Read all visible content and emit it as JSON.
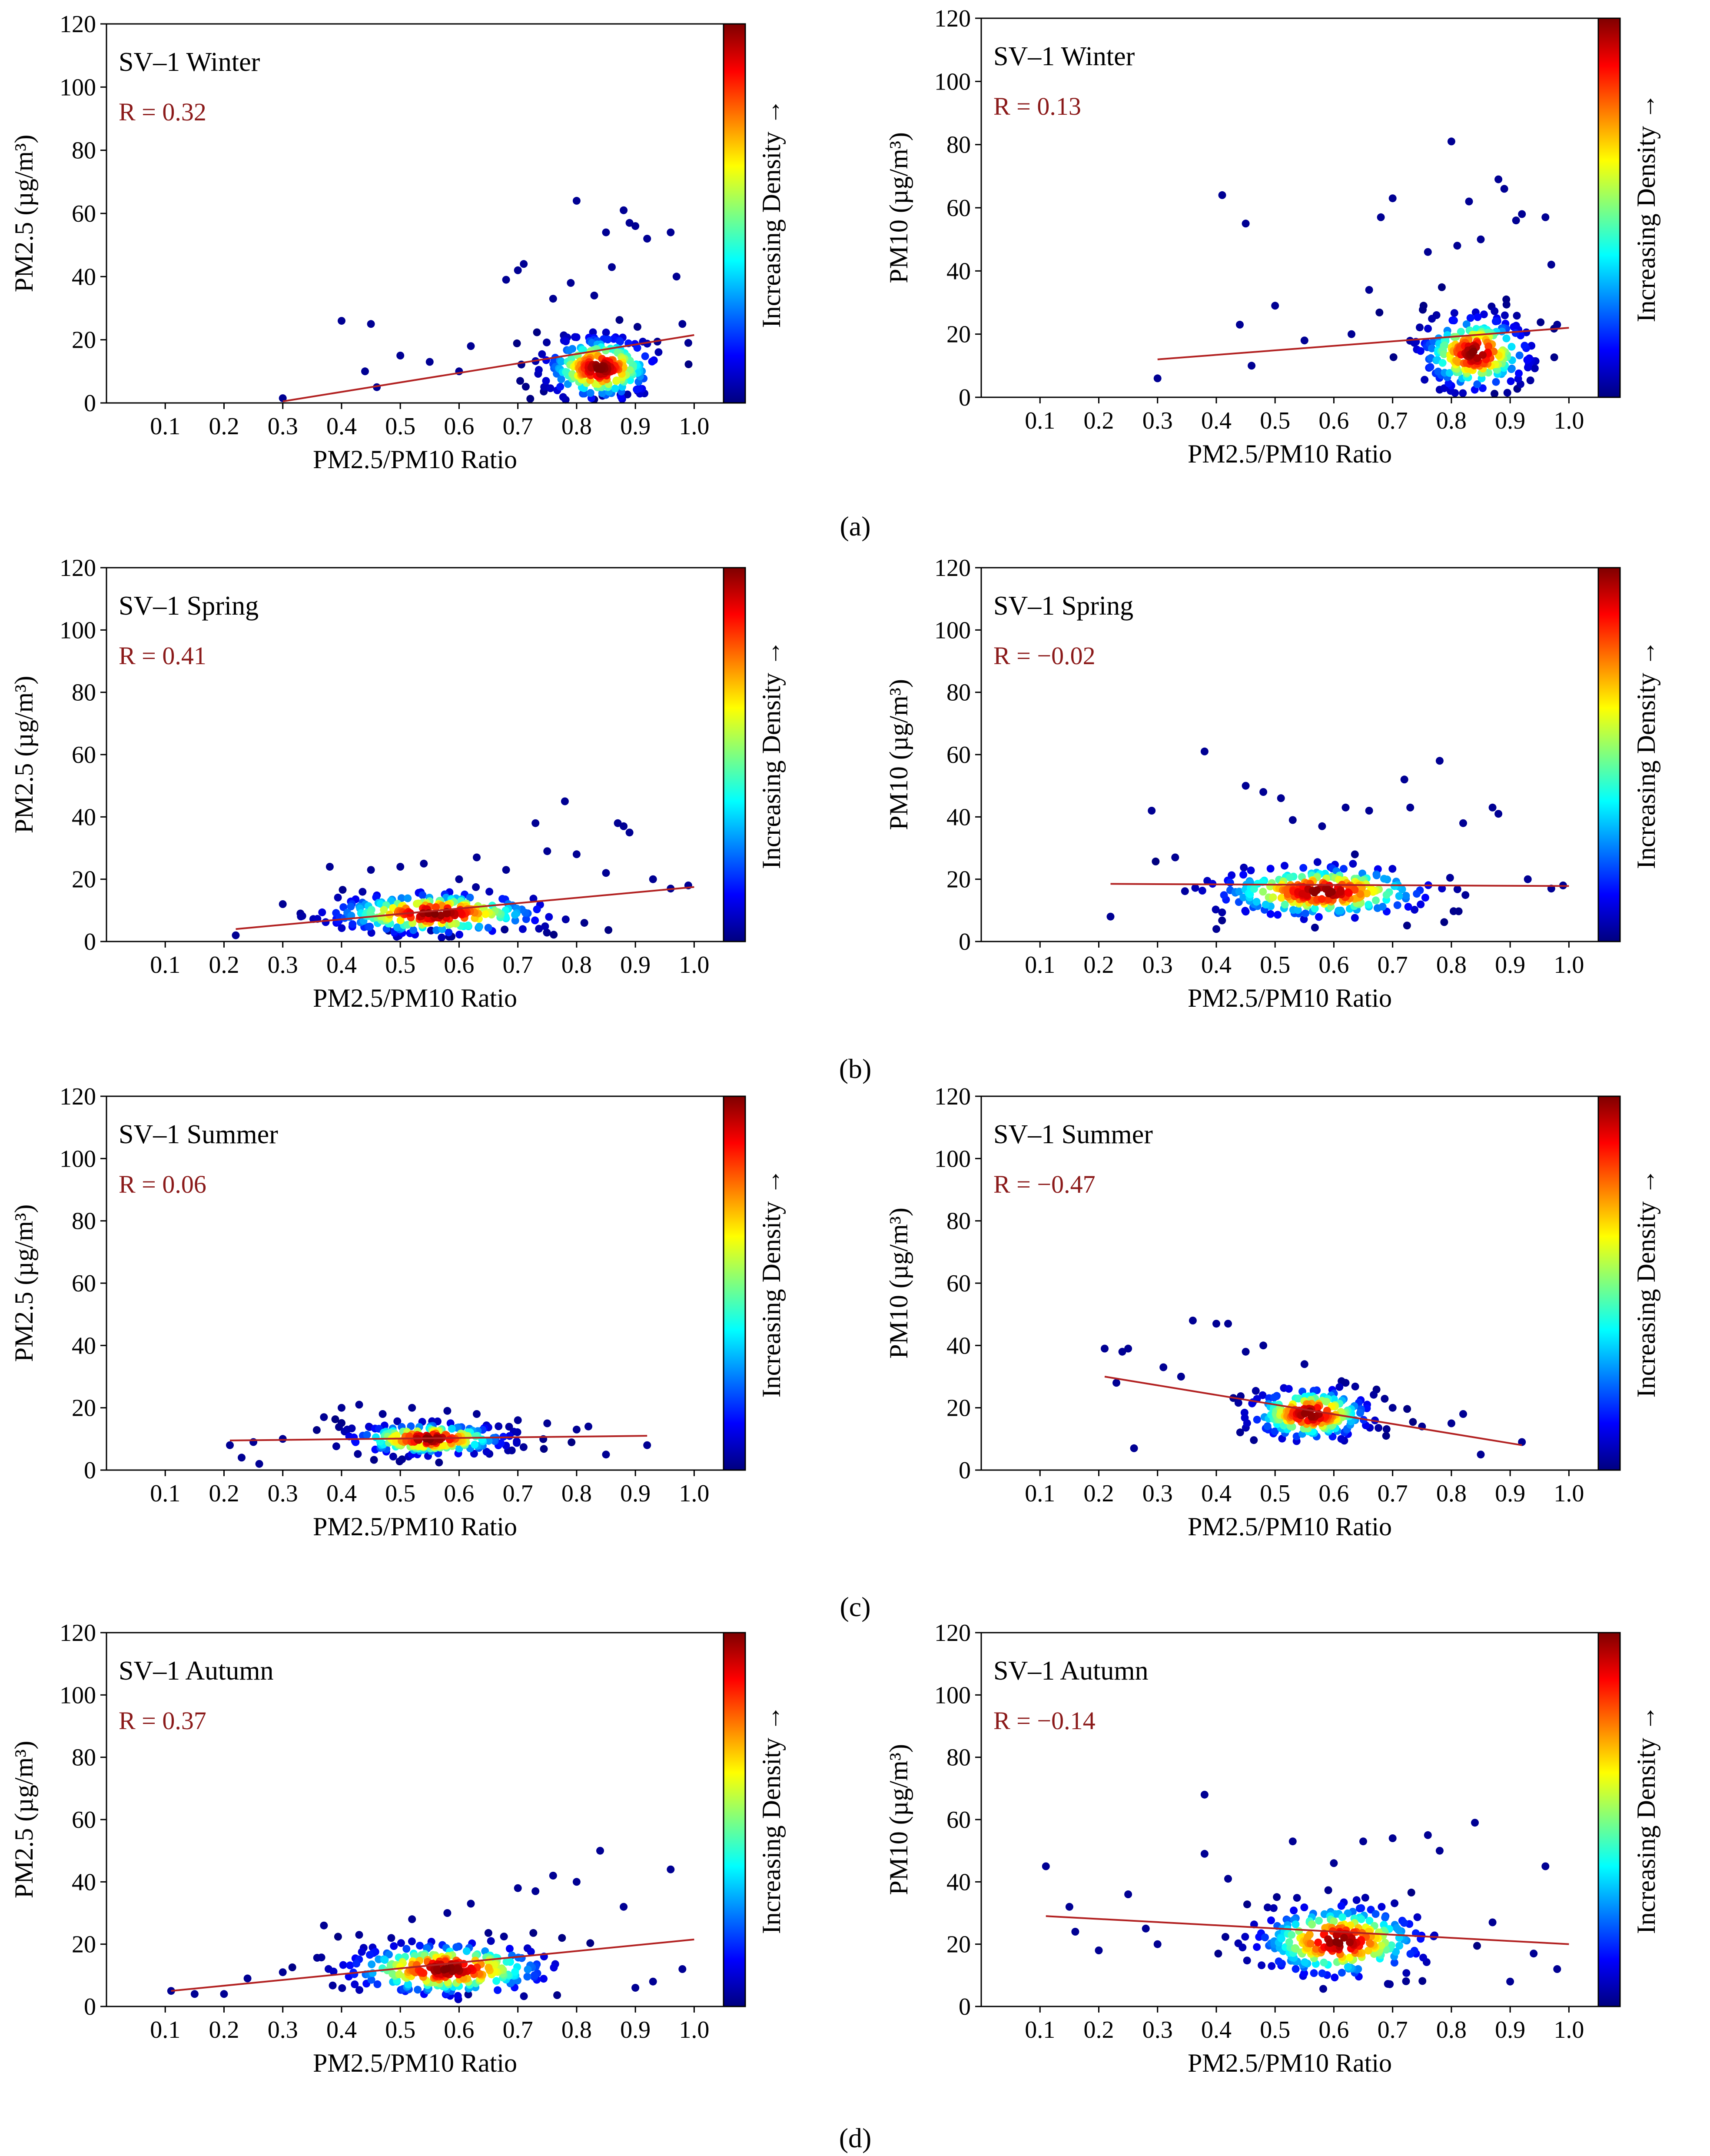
{
  "figure": {
    "panel_labels": [
      "(a)",
      "(b)",
      "(c)",
      "(d)"
    ],
    "colorbar_label": "Increasing Density →",
    "colorbar_colors": [
      "#00007f",
      "#0000ff",
      "#007fff",
      "#00ffff",
      "#7fff7f",
      "#ffff00",
      "#ff7f00",
      "#ff0000",
      "#7f0000"
    ],
    "fit_color": "#b22222",
    "r_color": "#8b1a1a"
  },
  "chart_data": [
    {
      "type": "scatter",
      "title": "SV–1 Winter",
      "r_text": "R = 0.32",
      "xlabel": "PM2.5/PM10 Ratio",
      "ylabel": "PM2.5 (µg/m³)",
      "xlim": [
        0,
        1.05
      ],
      "ylim": [
        0,
        120
      ],
      "xticks": [
        "0.1",
        "0.2",
        "0.3",
        "0.4",
        "0.5",
        "0.6",
        "0.7",
        "0.8",
        "0.9",
        "1.0"
      ],
      "yticks": [
        "0",
        "20",
        "40",
        "60",
        "80",
        "100",
        "120"
      ],
      "fit_line": {
        "x": [
          0.3,
          1.0
        ],
        "y": [
          0.5,
          21.5
        ]
      },
      "cluster": {
        "x_center": 0.84,
        "y_center": 11,
        "x_spread": 0.09,
        "y_spread": 6,
        "n": 260
      },
      "outliers": [
        [
          0.3,
          1.5
        ],
        [
          0.4,
          26
        ],
        [
          0.44,
          10
        ],
        [
          0.45,
          25
        ],
        [
          0.46,
          5
        ],
        [
          0.5,
          15
        ],
        [
          0.55,
          13
        ],
        [
          0.6,
          10
        ],
        [
          0.62,
          18
        ],
        [
          0.68,
          39
        ],
        [
          0.7,
          42
        ],
        [
          0.71,
          44
        ],
        [
          0.76,
          33
        ],
        [
          0.79,
          38
        ],
        [
          0.8,
          64
        ],
        [
          0.83,
          34
        ],
        [
          0.85,
          54
        ],
        [
          0.86,
          43
        ],
        [
          0.88,
          61
        ],
        [
          0.89,
          57
        ],
        [
          0.9,
          56
        ],
        [
          0.92,
          52
        ],
        [
          0.96,
          54
        ],
        [
          0.97,
          40
        ],
        [
          0.98,
          25
        ],
        [
          0.99,
          19
        ]
      ]
    },
    {
      "type": "scatter",
      "title": "SV–1 Winter",
      "r_text": "R = 0.13",
      "xlabel": "PM2.5/PM10 Ratio",
      "ylabel": "PM10 (µg/m³)",
      "xlim": [
        0,
        1.05
      ],
      "ylim": [
        0,
        120
      ],
      "xticks": [
        "0.1",
        "0.2",
        "0.3",
        "0.4",
        "0.5",
        "0.6",
        "0.7",
        "0.8",
        "0.9",
        "1.0"
      ],
      "yticks": [
        "0",
        "20",
        "40",
        "60",
        "80",
        "100",
        "120"
      ],
      "fit_line": {
        "x": [
          0.3,
          1.0
        ],
        "y": [
          12,
          22
        ]
      },
      "cluster": {
        "x_center": 0.84,
        "y_center": 14,
        "x_spread": 0.09,
        "y_spread": 7,
        "n": 260
      },
      "outliers": [
        [
          0.3,
          6
        ],
        [
          0.41,
          64
        ],
        [
          0.44,
          23
        ],
        [
          0.45,
          55
        ],
        [
          0.46,
          10
        ],
        [
          0.5,
          29
        ],
        [
          0.55,
          18
        ],
        [
          0.63,
          20
        ],
        [
          0.66,
          34
        ],
        [
          0.68,
          57
        ],
        [
          0.7,
          63
        ],
        [
          0.76,
          46
        ],
        [
          0.8,
          81
        ],
        [
          0.81,
          48
        ],
        [
          0.83,
          62
        ],
        [
          0.85,
          50
        ],
        [
          0.88,
          69
        ],
        [
          0.89,
          66
        ],
        [
          0.91,
          56
        ],
        [
          0.92,
          58
        ],
        [
          0.96,
          57
        ],
        [
          0.97,
          42
        ],
        [
          0.98,
          23
        ]
      ]
    },
    {
      "type": "scatter",
      "title": "SV–1 Spring",
      "r_text": "R = 0.41",
      "xlabel": "PM2.5/PM10 Ratio",
      "ylabel": "PM2.5 (µg/m³)",
      "xlim": [
        0,
        1.05
      ],
      "ylim": [
        0,
        120
      ],
      "xticks": [
        "0.1",
        "0.2",
        "0.3",
        "0.4",
        "0.5",
        "0.6",
        "0.7",
        "0.8",
        "0.9",
        "1.0"
      ],
      "yticks": [
        "0",
        "20",
        "40",
        "60",
        "80",
        "100",
        "120"
      ],
      "fit_line": {
        "x": [
          0.22,
          1.0
        ],
        "y": [
          4,
          17.5
        ]
      },
      "cluster": {
        "x_center": 0.56,
        "y_center": 9,
        "x_spread": 0.18,
        "y_spread": 4,
        "n": 260
      },
      "outliers": [
        [
          0.22,
          2
        ],
        [
          0.3,
          12
        ],
        [
          0.33,
          9
        ],
        [
          0.38,
          24
        ],
        [
          0.45,
          23
        ],
        [
          0.5,
          24
        ],
        [
          0.54,
          25
        ],
        [
          0.6,
          20
        ],
        [
          0.63,
          27
        ],
        [
          0.68,
          23
        ],
        [
          0.73,
          38
        ],
        [
          0.75,
          29
        ],
        [
          0.78,
          45
        ],
        [
          0.8,
          28
        ],
        [
          0.85,
          22
        ],
        [
          0.87,
          38
        ],
        [
          0.88,
          37
        ],
        [
          0.89,
          35
        ],
        [
          0.93,
          20
        ],
        [
          0.96,
          17
        ],
        [
          0.99,
          18
        ]
      ]
    },
    {
      "type": "scatter",
      "title": "SV–1 Spring",
      "r_text": "R = −0.02",
      "xlabel": "PM2.5/PM10 Ratio",
      "ylabel": "PM10 (µg/m³)",
      "xlim": [
        0,
        1.05
      ],
      "ylim": [
        0,
        120
      ],
      "xticks": [
        "0.1",
        "0.2",
        "0.3",
        "0.4",
        "0.5",
        "0.6",
        "0.7",
        "0.8",
        "0.9",
        "1.0"
      ],
      "yticks": [
        "0",
        "20",
        "40",
        "60",
        "80",
        "100",
        "120"
      ],
      "fit_line": {
        "x": [
          0.22,
          1.0
        ],
        "y": [
          18.5,
          17.8
        ]
      },
      "cluster": {
        "x_center": 0.58,
        "y_center": 16,
        "x_spread": 0.18,
        "y_spread": 5,
        "n": 260
      },
      "outliers": [
        [
          0.22,
          8
        ],
        [
          0.29,
          42
        ],
        [
          0.33,
          27
        ],
        [
          0.38,
          61
        ],
        [
          0.4,
          4
        ],
        [
          0.45,
          50
        ],
        [
          0.48,
          48
        ],
        [
          0.51,
          46
        ],
        [
          0.53,
          39
        ],
        [
          0.58,
          37
        ],
        [
          0.62,
          43
        ],
        [
          0.66,
          42
        ],
        [
          0.72,
          52
        ],
        [
          0.73,
          43
        ],
        [
          0.78,
          58
        ],
        [
          0.82,
          38
        ],
        [
          0.87,
          43
        ],
        [
          0.88,
          41
        ],
        [
          0.93,
          20
        ],
        [
          0.97,
          17
        ],
        [
          0.99,
          18
        ]
      ]
    },
    {
      "type": "scatter",
      "title": "SV–1 Summer",
      "r_text": "R = 0.06",
      "xlabel": "PM2.5/PM10 Ratio",
      "ylabel": "PM2.5 (µg/m³)",
      "xlim": [
        0,
        1.05
      ],
      "ylim": [
        0,
        120
      ],
      "xticks": [
        "0.1",
        "0.2",
        "0.3",
        "0.4",
        "0.5",
        "0.6",
        "0.7",
        "0.8",
        "0.9",
        "1.0"
      ],
      "yticks": [
        "0",
        "20",
        "40",
        "60",
        "80",
        "100",
        "120"
      ],
      "fit_line": {
        "x": [
          0.21,
          0.92
        ],
        "y": [
          9.5,
          11
        ]
      },
      "cluster": {
        "x_center": 0.55,
        "y_center": 10,
        "x_spread": 0.13,
        "y_spread": 3,
        "n": 220
      },
      "outliers": [
        [
          0.21,
          8
        ],
        [
          0.23,
          4
        ],
        [
          0.25,
          9
        ],
        [
          0.26,
          2
        ],
        [
          0.3,
          10
        ],
        [
          0.37,
          17
        ],
        [
          0.4,
          20
        ],
        [
          0.43,
          21
        ],
        [
          0.47,
          18
        ],
        [
          0.52,
          20
        ],
        [
          0.58,
          19
        ],
        [
          0.63,
          18
        ],
        [
          0.7,
          16
        ],
        [
          0.75,
          15
        ],
        [
          0.8,
          13
        ],
        [
          0.82,
          14
        ],
        [
          0.85,
          5
        ],
        [
          0.92,
          8
        ]
      ]
    },
    {
      "type": "scatter",
      "title": "SV–1 Summer",
      "r_text": "R = −0.47",
      "xlabel": "PM2.5/PM10 Ratio",
      "ylabel": "PM10 (µg/m³)",
      "xlim": [
        0,
        1.05
      ],
      "ylim": [
        0,
        120
      ],
      "xticks": [
        "0.1",
        "0.2",
        "0.3",
        "0.4",
        "0.5",
        "0.6",
        "0.7",
        "0.8",
        "0.9",
        "1.0"
      ],
      "yticks": [
        "0",
        "20",
        "40",
        "60",
        "80",
        "100",
        "120"
      ],
      "fit_line": {
        "x": [
          0.21,
          0.92
        ],
        "y": [
          30,
          8
        ]
      },
      "cluster": {
        "x_center": 0.56,
        "y_center": 18,
        "x_spread": 0.1,
        "y_spread": 5,
        "n": 220
      },
      "outliers": [
        [
          0.21,
          39
        ],
        [
          0.23,
          28
        ],
        [
          0.24,
          38
        ],
        [
          0.25,
          39
        ],
        [
          0.26,
          7
        ],
        [
          0.31,
          33
        ],
        [
          0.34,
          30
        ],
        [
          0.36,
          48
        ],
        [
          0.4,
          47
        ],
        [
          0.42,
          47
        ],
        [
          0.45,
          38
        ],
        [
          0.48,
          40
        ],
        [
          0.55,
          34
        ],
        [
          0.62,
          28
        ],
        [
          0.7,
          20
        ],
        [
          0.75,
          14
        ],
        [
          0.8,
          15
        ],
        [
          0.82,
          18
        ],
        [
          0.85,
          5
        ],
        [
          0.92,
          9
        ]
      ]
    },
    {
      "type": "scatter",
      "title": "SV–1 Autumn",
      "r_text": "R = 0.37",
      "xlabel": "PM2.5/PM10 Ratio",
      "ylabel": "PM2.5 (µg/m³)",
      "xlim": [
        0,
        1.05
      ],
      "ylim": [
        0,
        120
      ],
      "xticks": [
        "0.1",
        "0.2",
        "0.3",
        "0.4",
        "0.5",
        "0.6",
        "0.7",
        "0.8",
        "0.9",
        "1.0"
      ],
      "yticks": [
        "0",
        "20",
        "40",
        "60",
        "80",
        "100",
        "120"
      ],
      "fit_line": {
        "x": [
          0.11,
          1.0
        ],
        "y": [
          5,
          21.5
        ]
      },
      "cluster": {
        "x_center": 0.58,
        "y_center": 12,
        "x_spread": 0.17,
        "y_spread": 5,
        "n": 280
      },
      "outliers": [
        [
          0.11,
          5
        ],
        [
          0.15,
          4
        ],
        [
          0.2,
          4
        ],
        [
          0.24,
          9
        ],
        [
          0.3,
          11
        ],
        [
          0.37,
          26
        ],
        [
          0.43,
          23
        ],
        [
          0.52,
          28
        ],
        [
          0.58,
          30
        ],
        [
          0.62,
          33
        ],
        [
          0.7,
          38
        ],
        [
          0.73,
          37
        ],
        [
          0.76,
          42
        ],
        [
          0.8,
          40
        ],
        [
          0.84,
          50
        ],
        [
          0.88,
          32
        ],
        [
          0.9,
          6
        ],
        [
          0.93,
          8
        ],
        [
          0.96,
          44
        ],
        [
          0.98,
          12
        ]
      ]
    },
    {
      "type": "scatter",
      "title": "SV–1 Autumn",
      "r_text": "R = −0.14",
      "xlabel": "PM2.5/PM10 Ratio",
      "ylabel": "PM10 (µg/m³)",
      "xlim": [
        0,
        1.05
      ],
      "ylim": [
        0,
        120
      ],
      "xticks": [
        "0.1",
        "0.2",
        "0.3",
        "0.4",
        "0.5",
        "0.6",
        "0.7",
        "0.8",
        "0.9",
        "1.0"
      ],
      "yticks": [
        "0",
        "20",
        "40",
        "60",
        "80",
        "100",
        "120"
      ],
      "fit_line": {
        "x": [
          0.11,
          1.0
        ],
        "y": [
          29,
          20
        ]
      },
      "cluster": {
        "x_center": 0.61,
        "y_center": 21,
        "x_spread": 0.14,
        "y_spread": 7,
        "n": 280
      },
      "outliers": [
        [
          0.11,
          45
        ],
        [
          0.15,
          32
        ],
        [
          0.16,
          24
        ],
        [
          0.2,
          18
        ],
        [
          0.25,
          36
        ],
        [
          0.28,
          25
        ],
        [
          0.3,
          20
        ],
        [
          0.38,
          68
        ],
        [
          0.38,
          49
        ],
        [
          0.42,
          41
        ],
        [
          0.53,
          53
        ],
        [
          0.6,
          46
        ],
        [
          0.65,
          53
        ],
        [
          0.7,
          54
        ],
        [
          0.76,
          55
        ],
        [
          0.78,
          50
        ],
        [
          0.84,
          59
        ],
        [
          0.87,
          27
        ],
        [
          0.9,
          8
        ],
        [
          0.94,
          17
        ],
        [
          0.96,
          45
        ],
        [
          0.98,
          12
        ]
      ]
    }
  ]
}
